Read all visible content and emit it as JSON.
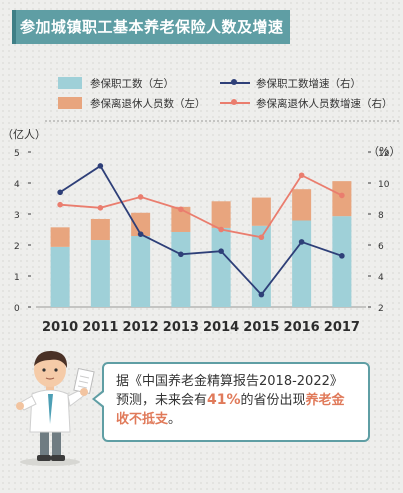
{
  "title": "参加城镇职工基本养老保险人数及增速",
  "legend": {
    "bar1": "参保职工数（左）",
    "bar2": "参保离退休人员数（左）",
    "line1": "参保职工数增速（右）",
    "line2": "参保离退休人员数增速（右）"
  },
  "axes": {
    "left_unit": "（亿人）",
    "right_unit": "（%）"
  },
  "colors": {
    "bar_workers": "#9fd0d8",
    "bar_retirees": "#e8a57e",
    "line_workers": "#2e3f78",
    "line_retirees": "#ea7d6e",
    "title_bg": "#5f9ea4"
  },
  "chart_data": {
    "type": "bar",
    "categories": [
      "2010",
      "2011",
      "2012",
      "2013",
      "2014",
      "2015",
      "2016",
      "2017"
    ],
    "ylim": [
      0,
      5
    ],
    "y_ticks": [
      "0",
      "1",
      "2",
      "3",
      "4",
      "5"
    ],
    "y2lim": [
      2,
      12
    ],
    "y2_ticks": [
      "2",
      "4",
      "6",
      "8",
      "10",
      "12"
    ],
    "series": [
      {
        "name": "参保职工数（左）",
        "kind": "bar",
        "stack": "total",
        "axis": "left",
        "values": [
          1.94,
          2.16,
          2.29,
          2.42,
          2.55,
          2.62,
          2.79,
          2.93
        ]
      },
      {
        "name": "参保离退休人员数（左）",
        "kind": "bar",
        "stack": "total",
        "axis": "left",
        "values": [
          0.63,
          0.68,
          0.75,
          0.81,
          0.86,
          0.91,
          1.01,
          1.13
        ]
      },
      {
        "name": "参保职工数增速（右）",
        "kind": "line",
        "axis": "right",
        "values": [
          9.4,
          11.1,
          6.7,
          5.4,
          5.6,
          2.8,
          6.2,
          5.3
        ]
      },
      {
        "name": "参保离退休人员数增速（右）",
        "kind": "line",
        "axis": "right",
        "values": [
          8.6,
          8.4,
          9.1,
          8.3,
          7.0,
          6.5,
          10.5,
          9.2
        ]
      }
    ]
  },
  "note": {
    "line1": "据《中国养老金精算报告2018-2022》",
    "line2_pre": "预测，未来会有",
    "line2_pct": "41%",
    "line2_mid": "的省份出现",
    "line2_hl": "养老金",
    "line3_hl": "收不抵支",
    "line3_post": "。"
  }
}
